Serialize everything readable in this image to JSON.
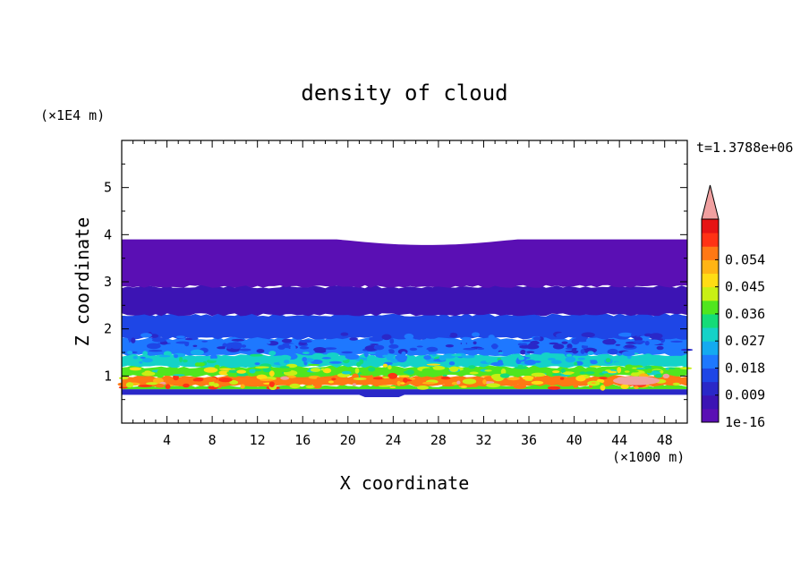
{
  "chart_data": {
    "type": "heatmap",
    "title": "density of cloud",
    "xlabel": "X coordinate",
    "ylabel": "Z coordinate",
    "x_unit": "(×1000 m)",
    "y_unit": "(×1E4 m)",
    "time_label": "t=1.3788e+06",
    "xlim": [
      0,
      50
    ],
    "ylim": [
      0,
      6
    ],
    "x_ticks": [
      4,
      8,
      12,
      16,
      20,
      24,
      28,
      32,
      36,
      40,
      44,
      48
    ],
    "y_ticks": [
      1,
      2,
      3,
      4,
      5
    ],
    "grid": false,
    "colorbar": {
      "position": "right",
      "levels": [
        0,
        0.0045,
        0.009,
        0.0135,
        0.018,
        0.0225,
        0.027,
        0.0315,
        0.036,
        0.0405,
        0.045,
        0.0495,
        0.054,
        0.0585,
        0.063
      ],
      "tick_labels": [
        "1e-16",
        "0.009",
        "0.018",
        "0.027",
        "0.036",
        "0.045",
        "0.054"
      ],
      "colors": [
        "#5a0fb4",
        "#3c14b4",
        "#2a28c8",
        "#1e46e6",
        "#1e78ff",
        "#14aaf0",
        "#14d2c8",
        "#14dc78",
        "#50e61e",
        "#c8f014",
        "#ffdc14",
        "#ffb414",
        "#ff7814",
        "#ff3214",
        "#e61414"
      ],
      "over_color": "#f0a0a0"
    },
    "layers": [
      {
        "z_range": [
          0.6,
          0.72
        ],
        "density": 0.009
      },
      {
        "z_range": [
          0.72,
          0.8
        ],
        "density": 0.036
      },
      {
        "z_range": [
          0.8,
          1.0
        ],
        "density": 0.054
      },
      {
        "z_range": [
          1.0,
          1.2
        ],
        "density": 0.036
      },
      {
        "z_range": [
          1.2,
          1.45
        ],
        "density": 0.027
      },
      {
        "z_range": [
          1.45,
          1.8
        ],
        "density": 0.018
      },
      {
        "z_range": [
          1.8,
          2.3
        ],
        "density": 0.0135
      },
      {
        "z_range": [
          2.3,
          2.9
        ],
        "density": 0.0045
      },
      {
        "z_range": [
          2.9,
          3.9
        ],
        "density": 1e-16
      }
    ]
  }
}
